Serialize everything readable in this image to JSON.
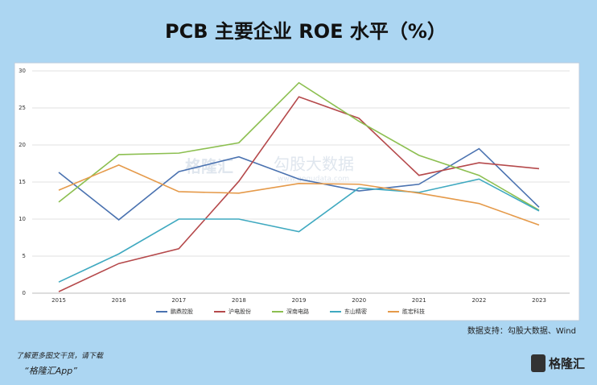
{
  "chart_data": {
    "type": "line",
    "title": "PCB 主要企业 ROE 水平（%）",
    "categories": [
      "2015",
      "2016",
      "2017",
      "2018",
      "2019",
      "2020",
      "2021",
      "2022",
      "2023"
    ],
    "series": [
      {
        "name": "鹏鼎控股",
        "color": "#4a72b0",
        "values": [
          16.3,
          9.9,
          16.4,
          18.4,
          15.4,
          13.8,
          14.7,
          19.5,
          11.6
        ]
      },
      {
        "name": "沪电股份",
        "color": "#b5494b",
        "values": [
          0.2,
          4.0,
          6.0,
          15.1,
          26.5,
          23.6,
          15.9,
          17.6,
          16.8
        ]
      },
      {
        "name": "深南电路",
        "color": "#8cbf50",
        "values": [
          12.3,
          18.7,
          18.9,
          20.3,
          28.4,
          23.2,
          18.6,
          15.9,
          11.2
        ]
      },
      {
        "name": "东山精密",
        "color": "#3fa9c0",
        "values": [
          1.5,
          5.3,
          10.0,
          10.0,
          8.3,
          14.2,
          13.6,
          15.4,
          11.1
        ]
      },
      {
        "name": "胜宏科技",
        "color": "#e59a4a",
        "values": [
          13.9,
          17.3,
          13.7,
          13.5,
          14.8,
          14.7,
          13.5,
          12.1,
          9.2
        ]
      }
    ],
    "ylim": [
      0,
      30
    ],
    "yticks": [
      0,
      5,
      10,
      15,
      20,
      25,
      30
    ],
    "grid": true,
    "legend": "bottom",
    "source": "数据支持：勾股大数据、Wind",
    "watermark": "勾股大数据",
    "watermark_url": "www.gogudata.com",
    "watermark_logo": "格隆汇"
  },
  "footer": {
    "line1": "了解更多图文干货，请下载",
    "line2": "“格隆汇App”",
    "logo": "格隆汇"
  }
}
